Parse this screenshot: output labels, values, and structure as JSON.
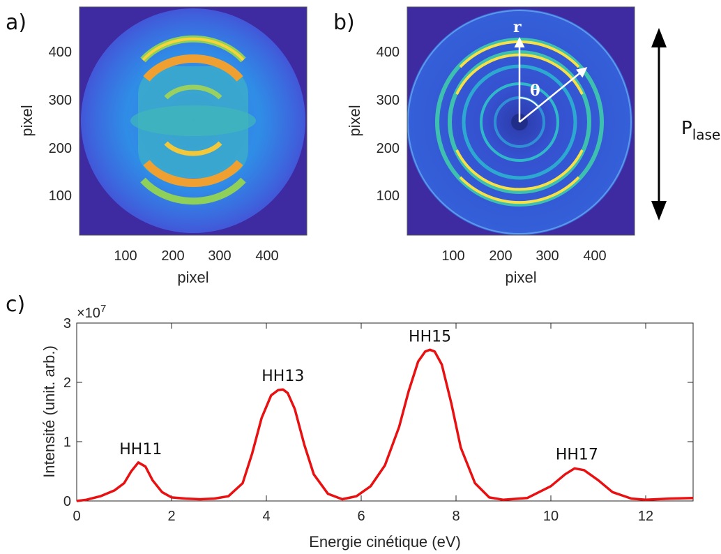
{
  "panels": {
    "a": {
      "label": "a)",
      "xlabel": "pixel",
      "ylabel": "pixel",
      "xticks": [
        "100",
        "200",
        "300",
        "400"
      ],
      "yticks": [
        "100",
        "200",
        "300",
        "400"
      ]
    },
    "b": {
      "label": "b)",
      "xlabel": "pixel",
      "ylabel": "pixel",
      "xticks": [
        "100",
        "200",
        "300",
        "400"
      ],
      "yticks": [
        "100",
        "200",
        "300",
        "400"
      ],
      "r_label": "r",
      "theta_label": "θ"
    },
    "polarization": {
      "main": "P",
      "sub": "laser"
    },
    "c": {
      "label": "c)"
    }
  },
  "colors": {
    "background": "#3e2aa1",
    "curve": "#e81010",
    "ring": "#f5e04a",
    "arrow": "#ffffff"
  },
  "chart_data": [
    {
      "type": "heatmap",
      "panel": "a",
      "xlabel": "pixel",
      "ylabel": "pixel",
      "xlim": [
        1,
        480
      ],
      "ylim": [
        1,
        480
      ],
      "xticks": [
        100,
        200,
        300,
        400
      ],
      "yticks": [
        100,
        200,
        300,
        400
      ],
      "colormap": "parula",
      "center": [
        240,
        240
      ]
    },
    {
      "type": "heatmap",
      "panel": "b",
      "xlabel": "pixel",
      "ylabel": "pixel",
      "xlim": [
        1,
        480
      ],
      "ylim": [
        1,
        480
      ],
      "xticks": [
        100,
        200,
        300,
        400
      ],
      "yticks": [
        100,
        200,
        300,
        400
      ],
      "colormap": "parula",
      "center": [
        240,
        240
      ],
      "ring_radii": [
        60,
        120,
        155,
        215
      ]
    },
    {
      "type": "line",
      "panel": "c",
      "xlabel": "Energie cinétique (eV)",
      "ylabel": "Intensité (unit. arb.)",
      "y_exponent": "×10^7",
      "xlim": [
        0,
        13
      ],
      "ylim": [
        0,
        3
      ],
      "xticks": [
        0,
        2,
        4,
        6,
        8,
        10,
        12
      ],
      "yticks": [
        0,
        1,
        2,
        3
      ],
      "series": [
        {
          "x": [
            0,
            0.2,
            0.5,
            0.8,
            1.0,
            1.15,
            1.3,
            1.45,
            1.6,
            1.8,
            2.0,
            2.3,
            2.6,
            2.9,
            3.2,
            3.5,
            3.7,
            3.9,
            4.1,
            4.25,
            4.35,
            4.45,
            4.6,
            4.8,
            5.0,
            5.3,
            5.6,
            5.9,
            6.2,
            6.5,
            6.8,
            7.0,
            7.2,
            7.35,
            7.45,
            7.55,
            7.7,
            7.9,
            8.1,
            8.4,
            8.7,
            9.0,
            9.5,
            10.0,
            10.3,
            10.5,
            10.7,
            11.0,
            11.3,
            11.7,
            12.0,
            12.5,
            13.0
          ],
          "y": [
            0.0,
            0.02,
            0.08,
            0.18,
            0.3,
            0.5,
            0.65,
            0.58,
            0.35,
            0.15,
            0.06,
            0.04,
            0.03,
            0.04,
            0.08,
            0.3,
            0.8,
            1.4,
            1.78,
            1.87,
            1.88,
            1.82,
            1.55,
            0.95,
            0.45,
            0.12,
            0.03,
            0.08,
            0.25,
            0.6,
            1.25,
            1.85,
            2.35,
            2.52,
            2.55,
            2.52,
            2.3,
            1.65,
            0.9,
            0.3,
            0.06,
            0.02,
            0.05,
            0.25,
            0.45,
            0.55,
            0.52,
            0.35,
            0.15,
            0.04,
            0.02,
            0.04,
            0.05
          ]
        }
      ],
      "annotations": [
        {
          "text": "HH11",
          "x": 1.35,
          "y": 0.65
        },
        {
          "text": "HH13",
          "x": 4.35,
          "y": 1.88
        },
        {
          "text": "HH15",
          "x": 7.45,
          "y": 2.55
        },
        {
          "text": "HH17",
          "x": 10.55,
          "y": 0.56
        }
      ]
    }
  ]
}
